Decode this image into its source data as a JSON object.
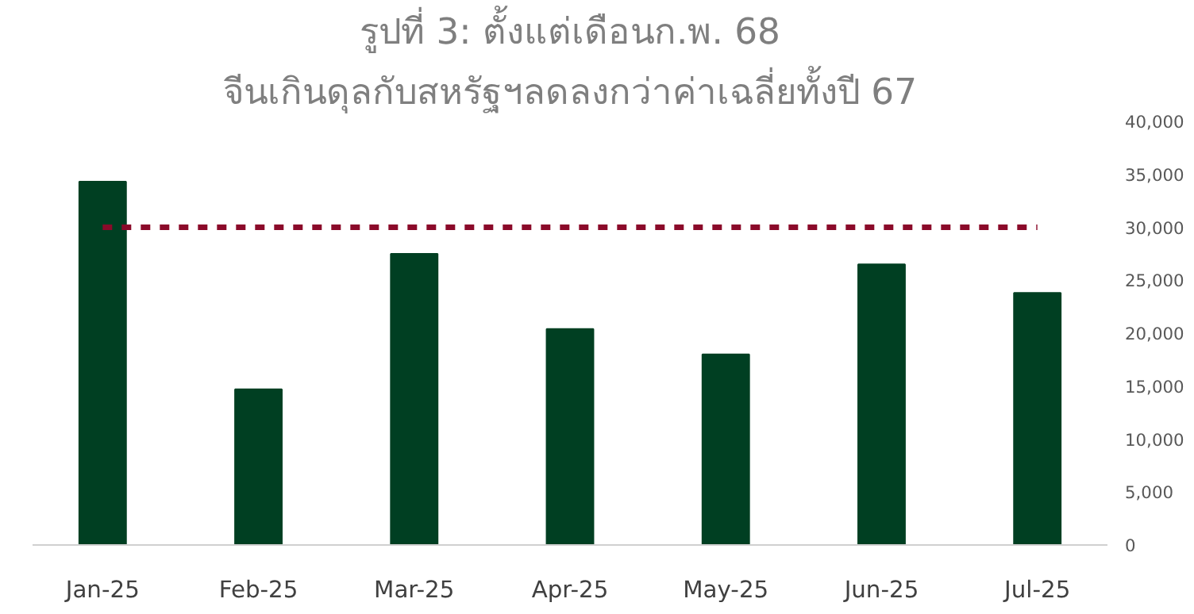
{
  "chart_data": {
    "type": "bar",
    "title": "รูปที่ 3: ตั้งแต่เดือนก.พ. 68",
    "subtitle": "จีนเกินดุลกับสหรัฐฯลดลงกว่าค่าเฉลี่ยทั้งปี 67",
    "categories": [
      "Jan-25",
      "Feb-25",
      "Mar-25",
      "Apr-25",
      "May-25",
      "Jun-25",
      "Jul-25"
    ],
    "values": [
      34300,
      14700,
      27500,
      20400,
      18000,
      26500,
      23800
    ],
    "color": "#003f22",
    "ylim": [
      0,
      40000
    ],
    "yticks": [
      {
        "value": 0,
        "label": "0"
      },
      {
        "value": 5000,
        "label": "5,000"
      },
      {
        "value": 10000,
        "label": "10,000"
      },
      {
        "value": 15000,
        "label": "15,000"
      },
      {
        "value": 20000,
        "label": "20,000"
      },
      {
        "value": 25000,
        "label": "25,000"
      },
      {
        "value": 30000,
        "label": "30,000"
      },
      {
        "value": 35000,
        "label": "35,000"
      },
      {
        "value": 40000,
        "label": "40,000"
      }
    ],
    "ref_lines": [
      {
        "axis": "y",
        "value": 30000,
        "color": "#8b0a2a",
        "line_style": "dashed"
      }
    ],
    "grid": false
  }
}
